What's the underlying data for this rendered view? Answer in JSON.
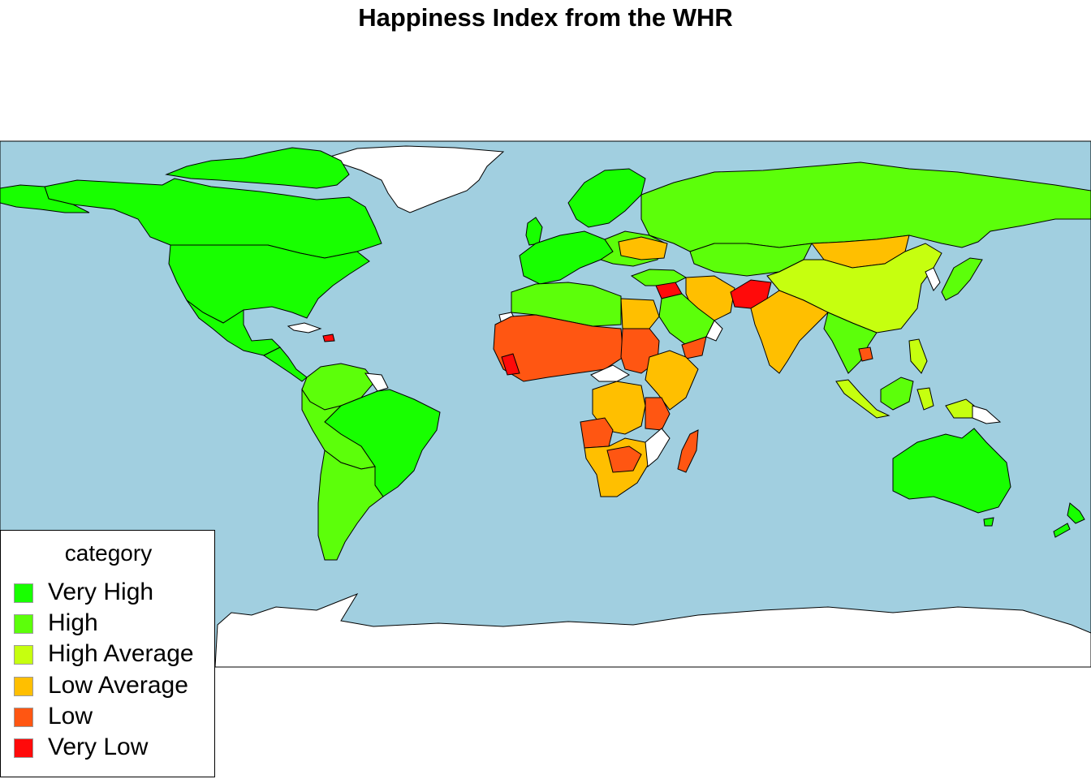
{
  "title": "Happiness Index from the WHR",
  "colors": {
    "ocean": "#a1cfe0",
    "no_data": "#ffffff",
    "border": "#000000"
  },
  "legend": {
    "title": "category",
    "items": [
      {
        "label": "Very High",
        "color": "#18ff00"
      },
      {
        "label": "High",
        "color": "#5cff0a"
      },
      {
        "label": "High Average",
        "color": "#c6ff0f"
      },
      {
        "label": "Low Average",
        "color": "#ffbf00"
      },
      {
        "label": "Low",
        "color": "#ff5612"
      },
      {
        "label": "Very Low",
        "color": "#ff0a0a"
      }
    ]
  },
  "regions": [
    {
      "name": "Canada",
      "category": "Very High"
    },
    {
      "name": "United States",
      "category": "Very High"
    },
    {
      "name": "Mexico",
      "category": "Very High"
    },
    {
      "name": "Central America",
      "category": "Very High"
    },
    {
      "name": "Greenland",
      "category": "No data"
    },
    {
      "name": "Brazil",
      "category": "Very High"
    },
    {
      "name": "Colombia",
      "category": "High"
    },
    {
      "name": "Peru",
      "category": "High"
    },
    {
      "name": "Chile",
      "category": "High"
    },
    {
      "name": "Argentina",
      "category": "High"
    },
    {
      "name": "Bolivia",
      "category": "High"
    },
    {
      "name": "Venezuela",
      "category": "High"
    },
    {
      "name": "Scandinavia",
      "category": "Very High"
    },
    {
      "name": "Western Europe",
      "category": "Very High"
    },
    {
      "name": "Eastern Europe",
      "category": "High"
    },
    {
      "name": "Ukraine",
      "category": "Low Average"
    },
    {
      "name": "Russia",
      "category": "High"
    },
    {
      "name": "Kazakhstan",
      "category": "High"
    },
    {
      "name": "Mongolia",
      "category": "Low Average"
    },
    {
      "name": "China",
      "category": "High Average"
    },
    {
      "name": "India",
      "category": "Low Average"
    },
    {
      "name": "Iran",
      "category": "Low Average"
    },
    {
      "name": "Afghanistan",
      "category": "Very Low"
    },
    {
      "name": "Syria",
      "category": "Very Low"
    },
    {
      "name": "Saudi Arabia",
      "category": "High"
    },
    {
      "name": "Yemen",
      "category": "Low"
    },
    {
      "name": "North Africa",
      "category": "High"
    },
    {
      "name": "Egypt",
      "category": "Low Average"
    },
    {
      "name": "Sahel",
      "category": "Low"
    },
    {
      "name": "Sudan",
      "category": "Low"
    },
    {
      "name": "Ethiopia",
      "category": "Low Average"
    },
    {
      "name": "DR Congo",
      "category": "Low Average"
    },
    {
      "name": "Angola",
      "category": "Low"
    },
    {
      "name": "Southern Africa",
      "category": "Low Average"
    },
    {
      "name": "Madagascar",
      "category": "Low"
    },
    {
      "name": "Southeast Asia",
      "category": "High"
    },
    {
      "name": "Indonesia",
      "category": "High Average"
    },
    {
      "name": "Australia",
      "category": "Very High"
    },
    {
      "name": "New Zealand",
      "category": "Very High"
    },
    {
      "name": "Japan",
      "category": "High"
    },
    {
      "name": "Antarctica",
      "category": "No data"
    }
  ]
}
